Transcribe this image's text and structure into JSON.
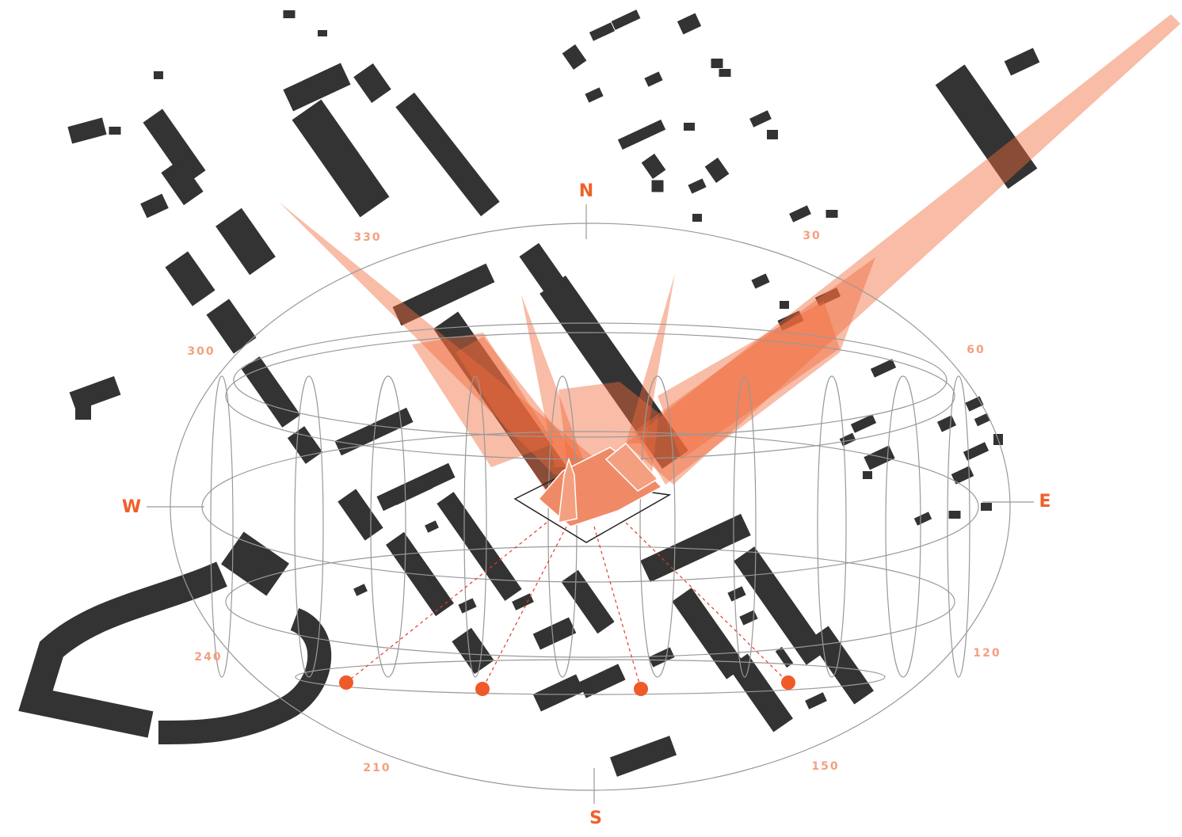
{
  "compass": {
    "north": "N",
    "south": "S",
    "east": "E",
    "west": "W"
  },
  "azimuth_labels": [
    330,
    30,
    300,
    60,
    240,
    120,
    210,
    150
  ]
}
